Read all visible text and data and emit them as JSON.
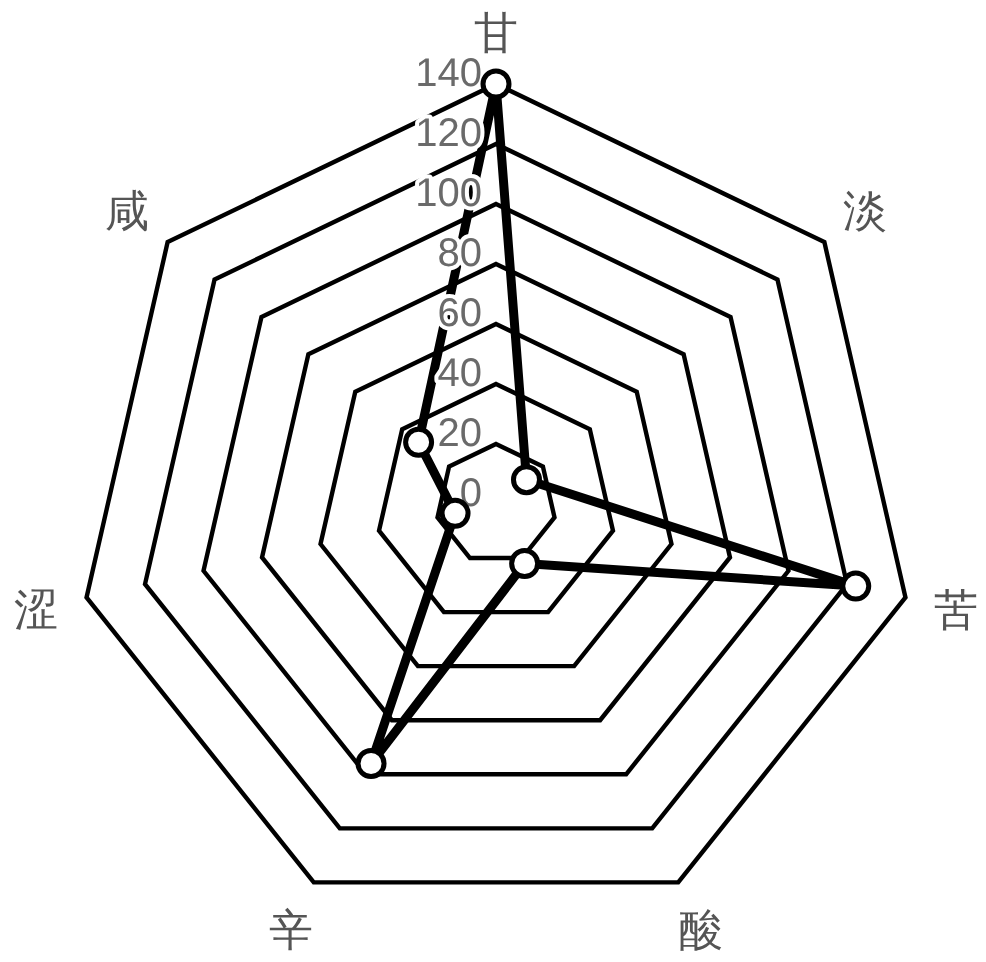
{
  "chart_data": {
    "type": "radar",
    "categories": [
      "甘",
      "淡",
      "苦",
      "酸",
      "辛",
      "涩",
      "咸"
    ],
    "series": [
      {
        "color": "#000000",
        "values": [
          140,
          13,
          123,
          22,
          96,
          14,
          33
        ]
      }
    ],
    "ylim": [
      0,
      140
    ],
    "yticks": [
      0,
      20,
      40,
      60,
      80,
      100,
      120,
      140
    ],
    "grid": true,
    "marker": "circle",
    "line_style": "solid"
  }
}
